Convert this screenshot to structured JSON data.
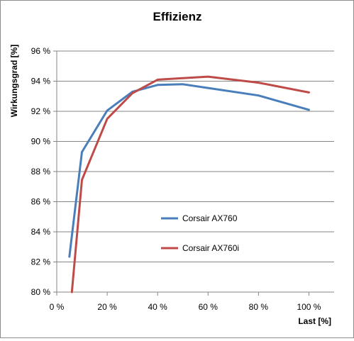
{
  "chart_data": {
    "type": "line",
    "title": "Effizienz",
    "xlabel": "Last [%]",
    "ylabel": "Wirkungsgrad [%]",
    "xlim": [
      0,
      110
    ],
    "ylim": [
      80,
      96
    ],
    "xticks": [
      0,
      20,
      40,
      60,
      80,
      100
    ],
    "yticks": [
      80,
      82,
      84,
      86,
      88,
      90,
      92,
      94,
      96
    ],
    "xtick_labels": [
      "0 %",
      "20 %",
      "40 %",
      "60 %",
      "80 %",
      "100 %"
    ],
    "ytick_labels": [
      "80 %",
      "82 %",
      "84 %",
      "86 %",
      "88 %",
      "90 %",
      "92 %",
      "94 %",
      "96 %"
    ],
    "grid": "horizontal",
    "legend_position": "center-right",
    "series": [
      {
        "name": "Corsair AX760",
        "color": "#4a7ebb",
        "x": [
          5,
          10,
          20,
          30,
          40,
          50,
          60,
          80,
          100
        ],
        "y": [
          82.35,
          89.3,
          92.05,
          93.3,
          93.75,
          93.8,
          93.55,
          93.05,
          92.1
        ]
      },
      {
        "name": "Corsair AX760i",
        "color": "#be4b48",
        "x": [
          6,
          10,
          20,
          30,
          40,
          50,
          60,
          80,
          100
        ],
        "y": [
          80.0,
          87.45,
          91.5,
          93.2,
          94.1,
          94.2,
          94.3,
          93.9,
          93.25
        ]
      }
    ]
  }
}
